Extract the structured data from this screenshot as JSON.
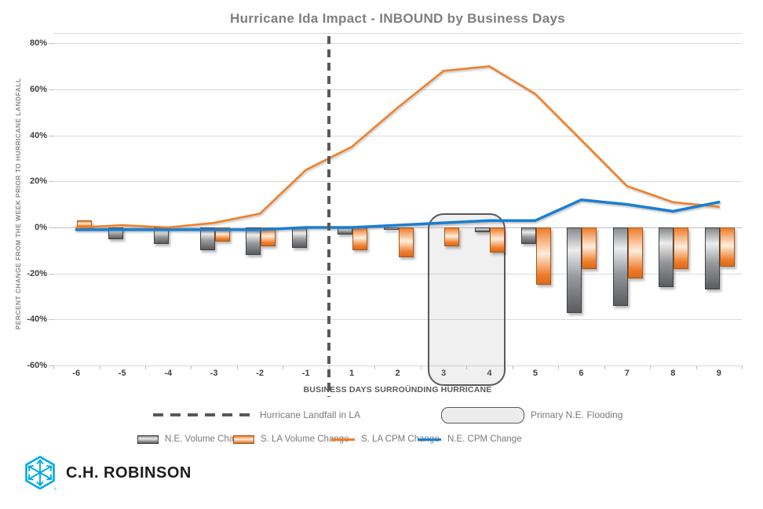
{
  "title": "Hurricane Ida Impact - INBOUND by Business Days",
  "chart_data": {
    "type": "bar+line combo",
    "categories": [
      "-6",
      "-5",
      "-4",
      "-3",
      "-2",
      "-1",
      "1",
      "2",
      "3",
      "4",
      "5",
      "6",
      "7",
      "8",
      "9"
    ],
    "yticks": [
      80,
      60,
      40,
      20,
      0,
      -20,
      -40,
      -60
    ],
    "ylim": [
      -60,
      80
    ],
    "ylabel": "PERCENT CHANGE FROM THE WEEK PRIOR TO HURRICANE LANDFALL",
    "xlabel": "BUSINESS DAYS SURROÜNDING HURRICANE",
    "grid": "horizontal only",
    "bar_series": [
      {
        "name": "N.E. Volume Change",
        "style": "gray",
        "values": [
          0,
          -5,
          -7,
          -10,
          -12,
          -9,
          -3,
          -1,
          0,
          -2,
          -7,
          -37,
          -34,
          -26,
          -27
        ]
      },
      {
        "name": "S. LA Volume Change",
        "style": "orange",
        "values": [
          3,
          0,
          0,
          -6,
          -8,
          0,
          -10,
          -13,
          -8,
          -11,
          -25,
          -18,
          -22,
          -18,
          -17
        ]
      }
    ],
    "line_series": [
      {
        "name": "S. LA CPM Change",
        "color": "#F07E26",
        "width": 2.5,
        "values": [
          0,
          1,
          0,
          2,
          6,
          25,
          35,
          52,
          68,
          70,
          58,
          38,
          18,
          11,
          9
        ]
      },
      {
        "name": "N.E. CPM Change",
        "color": "#1B7ED0",
        "width": 3.5,
        "values": [
          -1,
          -1,
          -1,
          -1,
          -1,
          0,
          0,
          1,
          2,
          3,
          3,
          12,
          10,
          7,
          11
        ]
      }
    ],
    "annotations": {
      "landfall_line": {
        "label": "Hurricane Landfall in LA",
        "between_days": [
          "-1",
          "1"
        ]
      },
      "flooding_box": {
        "label": "Primary N.E. Flooding",
        "covers_days": [
          "3",
          "4"
        ]
      }
    }
  },
  "legend": {
    "row1": [
      {
        "swatch": "dashed-line",
        "label": "Hurricane Landfall in LA"
      },
      {
        "swatch": "rounded-box",
        "label": "Primary N.E. Flooding"
      }
    ],
    "row2": [
      {
        "swatch": "gray-bar",
        "label": "N.E. Volume Change"
      },
      {
        "swatch": "orange-bar",
        "label": "S. LA Volume Change"
      },
      {
        "swatch": "orange-line",
        "label": "S. LA CPM Change"
      },
      {
        "swatch": "blue-line",
        "label": "N.E. CPM Change"
      }
    ]
  },
  "logo": {
    "brand": "C.H. ROBINSON"
  },
  "colors": {
    "orange_line": "#F07E26",
    "blue_line": "#1B7ED0",
    "gray_bar": "#85878a",
    "orange_bar": "#EE7C2B",
    "annotation_gray": "#595959",
    "title_gray": "#7F7F7F",
    "logo_blue": "#00A9E0",
    "grid_gray": "#D9D9D9"
  }
}
